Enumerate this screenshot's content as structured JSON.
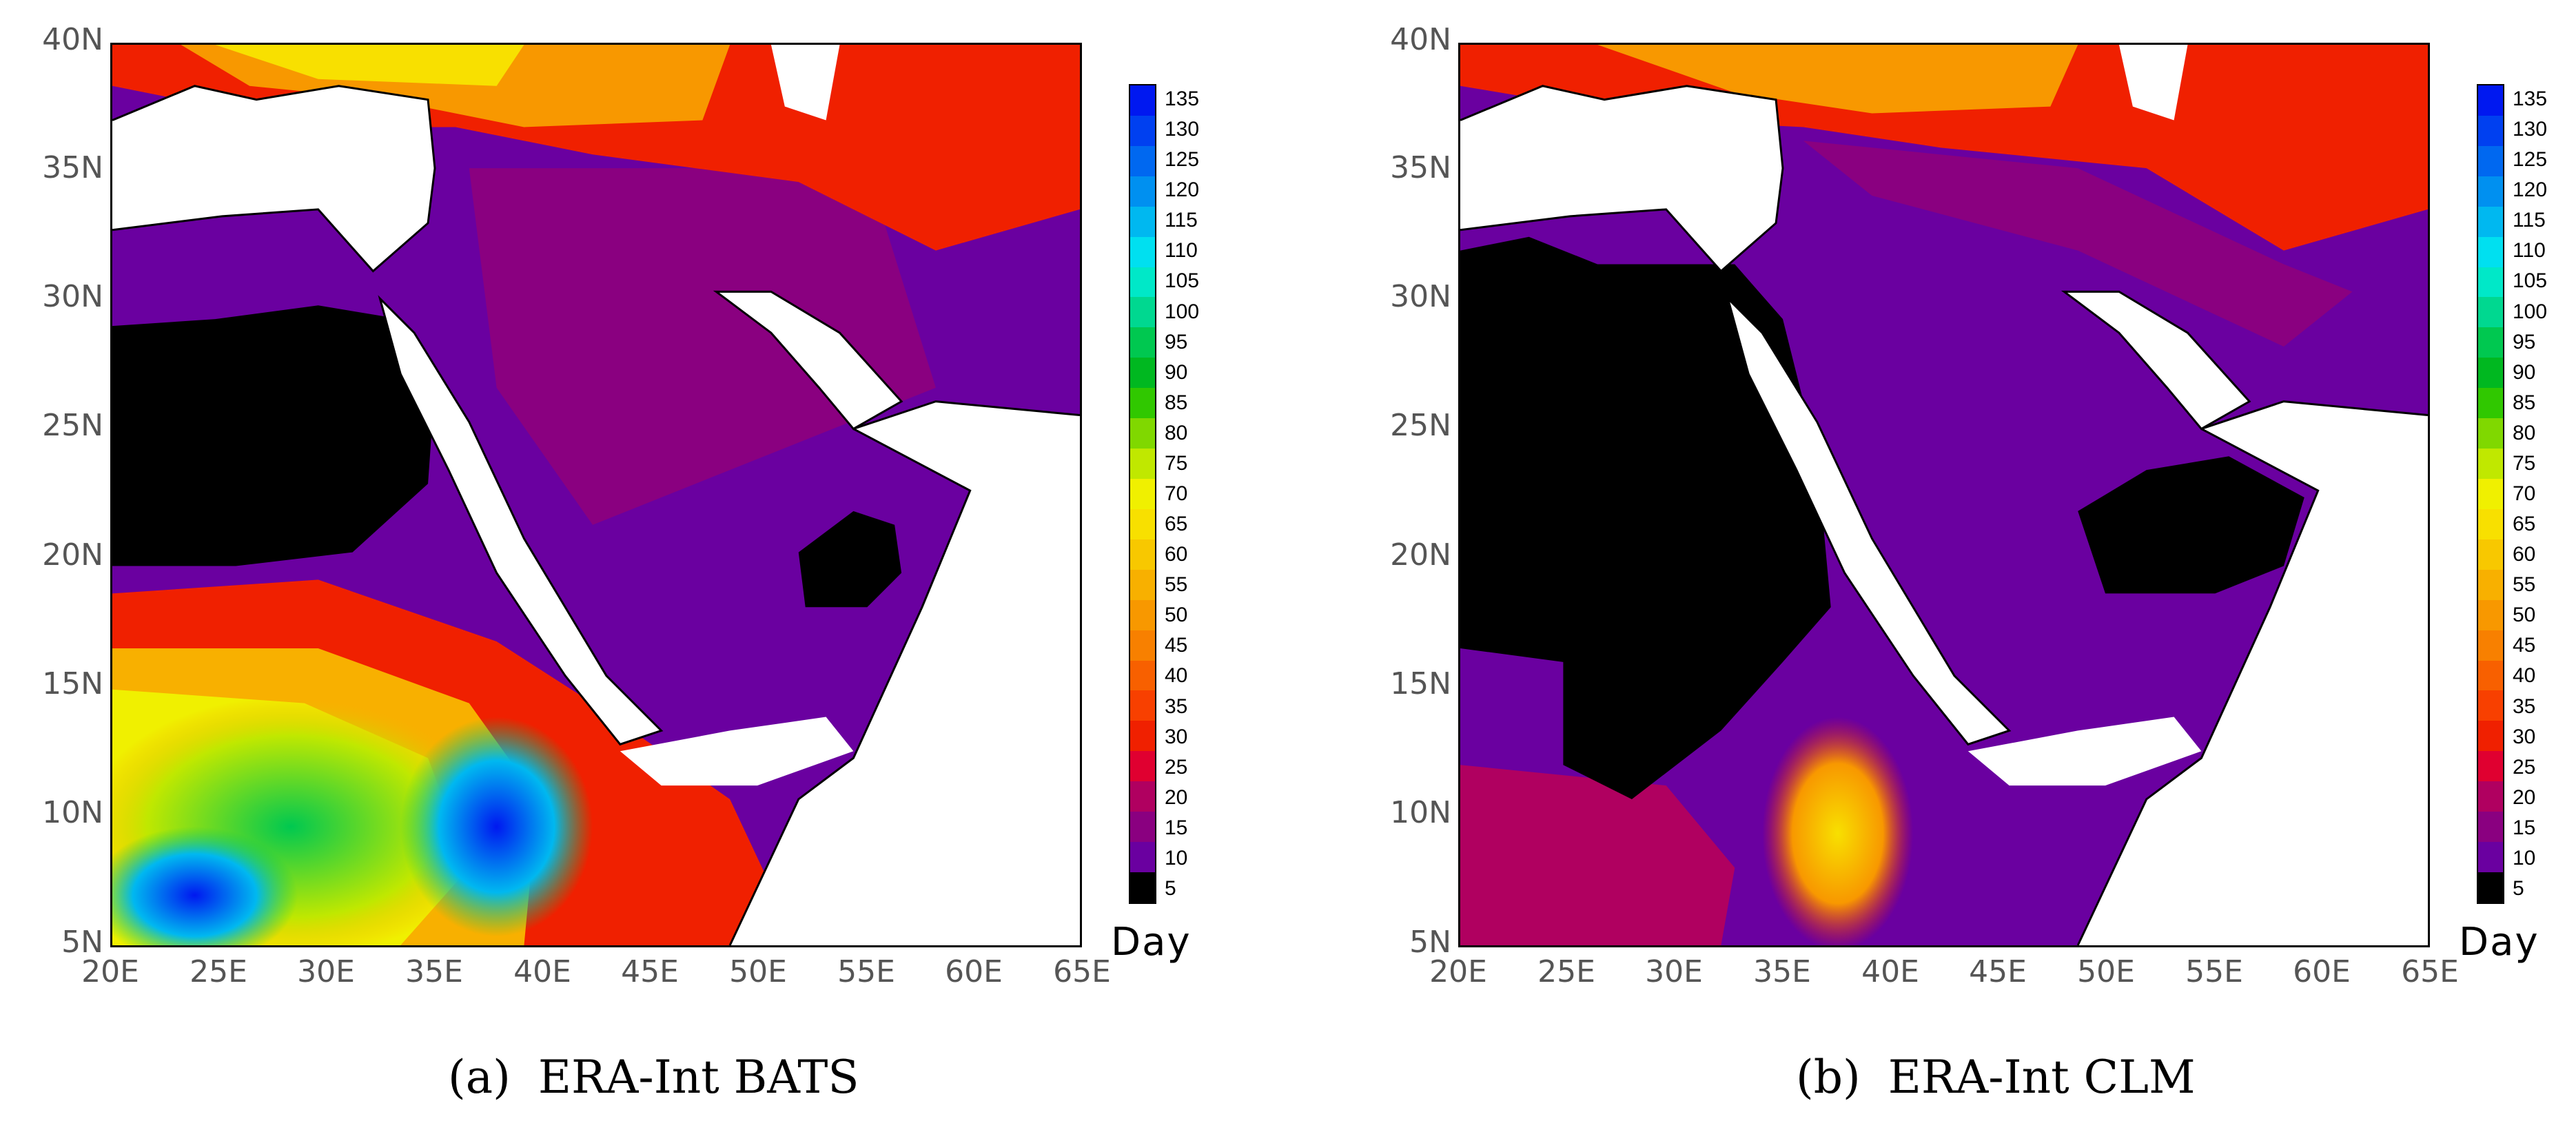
{
  "panels": [
    {
      "id": "a",
      "sub_label": "(a)",
      "title": "ERA-Int BATS"
    },
    {
      "id": "b",
      "sub_label": "(b)",
      "title": "ERA-Int CLM"
    }
  ],
  "axes": {
    "lat_ticks": [
      "40N",
      "35N",
      "30N",
      "25N",
      "20N",
      "15N",
      "10N",
      "5N"
    ],
    "lon_ticks": [
      "20E",
      "25E",
      "30E",
      "35E",
      "40E",
      "45E",
      "50E",
      "55E",
      "60E",
      "65E"
    ],
    "lat_range": [
      5,
      40
    ],
    "lon_range": [
      20,
      65
    ]
  },
  "colorbar": {
    "unit": "Day",
    "labels": [
      "135",
      "130",
      "125",
      "120",
      "115",
      "110",
      "105",
      "100",
      "95",
      "90",
      "85",
      "80",
      "75",
      "70",
      "65",
      "60",
      "55",
      "50",
      "45",
      "40",
      "35",
      "30",
      "25",
      "20",
      "15",
      "10",
      "5"
    ],
    "colors": [
      "#0018f0",
      "#0040f0",
      "#0068f0",
      "#0090f0",
      "#00b8f0",
      "#00e0f0",
      "#00e8c8",
      "#00d890",
      "#00c850",
      "#00b820",
      "#30c800",
      "#80d800",
      "#c0e800",
      "#f0f000",
      "#f8e000",
      "#f8c800",
      "#f8b000",
      "#f89800",
      "#f88000",
      "#f86000",
      "#f84000",
      "#f02000",
      "#e00030",
      "#b00060",
      "#8a0080",
      "#6a00a0",
      "#000000"
    ]
  },
  "palette": {
    "ocean": "#ffffff",
    "coast": "#000000",
    "black_area": "#000000"
  }
}
